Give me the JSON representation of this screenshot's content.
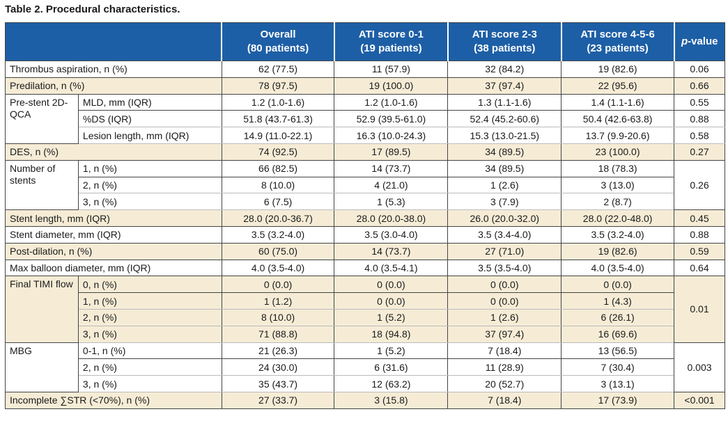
{
  "title": "Table 2. Procedural characteristics.",
  "header": {
    "columns": [
      [
        "Overall",
        "(80 patients)"
      ],
      [
        "ATI score 0-1",
        "(19 patients)"
      ],
      [
        "ATI score 2-3",
        "(38 patients)"
      ],
      [
        "ATI score 4-5-6",
        "(23 patients)"
      ]
    ],
    "pvalue": "p-value"
  },
  "groups": [
    {
      "label": "Thrombus aspiration, n (%)",
      "values": [
        "62 (77.5)",
        "11 (57.9)",
        "32 (84.2)",
        "19 (82.6)"
      ],
      "p": "0.06"
    },
    {
      "label": "Predilation, n (%)",
      "values": [
        "78 (97.5)",
        "19 (100.0)",
        "37 (97.4)",
        "22 (95.6)"
      ],
      "p": "0.66"
    },
    {
      "label": "Pre-stent 2D-QCA",
      "subrows": [
        {
          "label": "MLD, mm (IQR)",
          "values": [
            "1.2 (1.0-1.6)",
            "1.2 (1.0-1.6)",
            "1.3 (1.1-1.6)",
            "1.4 (1.1-1.6)"
          ],
          "p": "0.55"
        },
        {
          "label": "%DS (IQR)",
          "values": [
            "51.8 (43.7-61.3)",
            "52.9 (39.5-61.0)",
            "52.4 (45.2-60.6)",
            "50.4 (42.6-63.8)"
          ],
          "p": "0.88"
        },
        {
          "label": "Lesion length, mm (IQR)",
          "values": [
            "14.9 (11.0-22.1)",
            "16.3 (10.0-24.3)",
            "15.3 (13.0-21.5)",
            "13.7 (9.9-20.6)"
          ],
          "p": "0.58"
        }
      ]
    },
    {
      "label": "DES, n (%)",
      "values": [
        "74 (92.5)",
        "17 (89.5)",
        "34 (89.5)",
        "23 (100.0)"
      ],
      "p": "0.27"
    },
    {
      "label": "Number of stents",
      "p": "0.26",
      "subrows": [
        {
          "label": "1, n (%)",
          "values": [
            "66 (82.5)",
            "14 (73.7)",
            "34 (89.5)",
            "18 (78.3)"
          ]
        },
        {
          "label": "2, n (%)",
          "values": [
            "8 (10.0)",
            "4 (21.0)",
            "1 (2.6)",
            "3 (13.0)"
          ]
        },
        {
          "label": "3, n (%)",
          "values": [
            "6 (7.5)",
            "1 (5.3)",
            "3 (7.9)",
            "2 (8.7)"
          ]
        }
      ]
    },
    {
      "label": "Stent length, mm (IQR)",
      "values": [
        "28.0 (20.0-36.7)",
        "28.0 (20.0-38.0)",
        "26.0 (20.0-32.0)",
        "28.0 (22.0-48.0)"
      ],
      "p": "0.45"
    },
    {
      "label": "Stent diameter, mm (IQR)",
      "values": [
        "3.5 (3.2-4.0)",
        "3.5 (3.0-4.0)",
        "3.5 (3.4-4.0)",
        "3.5 (3.2-4.0)"
      ],
      "p": "0.88"
    },
    {
      "label": "Post-dilation, n (%)",
      "values": [
        "60 (75.0)",
        "14 (73.7)",
        "27 (71.0)",
        "19 (82.6)"
      ],
      "p": "0.59"
    },
    {
      "label": "Max balloon diameter, mm (IQR)",
      "values": [
        "4.0 (3.5-4.0)",
        "4.0 (3.5-4.1)",
        "3.5 (3.5-4.0)",
        "4.0 (3.5-4.0)"
      ],
      "p": "0.64"
    },
    {
      "label": "Final TIMI flow",
      "p": "0.01",
      "subrows": [
        {
          "label": "0, n (%)",
          "values": [
            "0 (0.0)",
            "0 (0.0)",
            "0 (0.0)",
            "0 (0.0)"
          ]
        },
        {
          "label": "1, n (%)",
          "values": [
            "1 (1.2)",
            "0 (0.0)",
            "0 (0.0)",
            "1 (4.3)"
          ]
        },
        {
          "label": "2, n (%)",
          "values": [
            "8 (10.0)",
            "1 (5.2)",
            "1 (2.6)",
            "6 (26.1)"
          ]
        },
        {
          "label": "3, n (%)",
          "values": [
            "71 (88.8)",
            "18 (94.8)",
            "37 (97.4)",
            "16 (69.6)"
          ]
        }
      ]
    },
    {
      "label": "MBG",
      "p": "0.003",
      "subrows": [
        {
          "label": "0-1, n (%)",
          "values": [
            "21 (26.3)",
            "1 (5.2)",
            "7 (18.4)",
            "13 (56.5)"
          ]
        },
        {
          "label": "2, n (%)",
          "values": [
            "24 (30.0)",
            "6 (31.6)",
            "11 (28.9)",
            "7 (30.4)"
          ]
        },
        {
          "label": "3, n (%)",
          "values": [
            "35 (43.7)",
            "12 (63.2)",
            "20 (52.7)",
            "3 (13.1)"
          ]
        }
      ]
    },
    {
      "label": "Incomplete ∑STR (<70%), n (%)",
      "values": [
        "27 (33.7)",
        "3 (15.8)",
        "7 (18.4)",
        "17 (73.9)"
      ],
      "p": "<0.001"
    }
  ]
}
